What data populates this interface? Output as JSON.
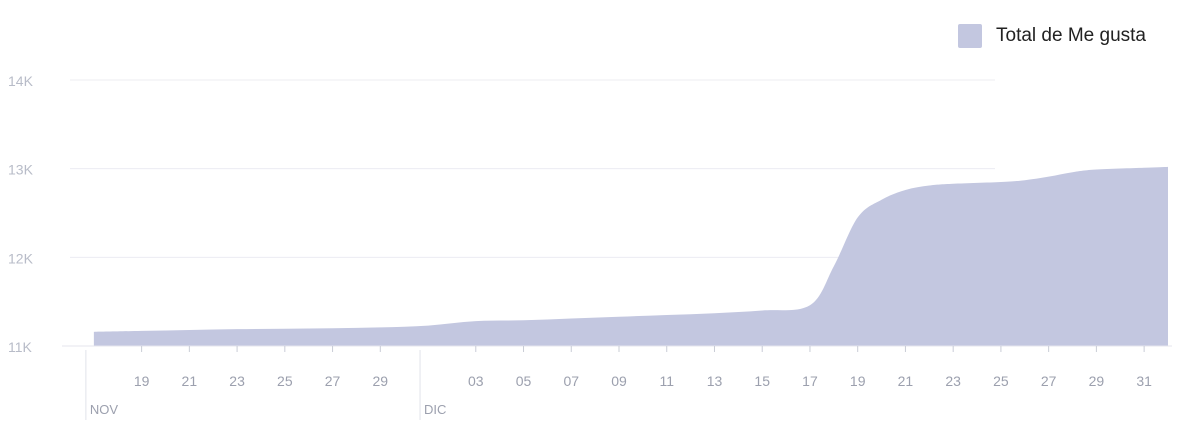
{
  "chart_data": {
    "type": "area",
    "series": [
      {
        "name": "Total de Me gusta",
        "color": "#c3c7e0",
        "points": [
          [
            "2017-11-17",
            11160
          ],
          [
            "2017-11-19",
            11170
          ],
          [
            "2017-11-21",
            11180
          ],
          [
            "2017-11-23",
            11190
          ],
          [
            "2017-11-25",
            11195
          ],
          [
            "2017-11-27",
            11200
          ],
          [
            "2017-11-29",
            11210
          ],
          [
            "2017-12-01",
            11230
          ],
          [
            "2017-12-03",
            11280
          ],
          [
            "2017-12-05",
            11290
          ],
          [
            "2017-12-07",
            11310
          ],
          [
            "2017-12-09",
            11330
          ],
          [
            "2017-12-11",
            11350
          ],
          [
            "2017-12-13",
            11370
          ],
          [
            "2017-12-15",
            11400
          ],
          [
            "2017-12-17",
            11460
          ],
          [
            "2017-12-18",
            11900
          ],
          [
            "2017-12-19",
            12450
          ],
          [
            "2017-12-20",
            12650
          ],
          [
            "2017-12-21",
            12760
          ],
          [
            "2017-12-22",
            12810
          ],
          [
            "2017-12-23",
            12830
          ],
          [
            "2017-12-25",
            12850
          ],
          [
            "2017-12-26",
            12870
          ],
          [
            "2017-12-27",
            12910
          ],
          [
            "2017-12-28",
            12960
          ],
          [
            "2017-12-29",
            12990
          ],
          [
            "2017-12-31",
            13010
          ],
          [
            "2018-01-01",
            13020
          ]
        ]
      }
    ],
    "ylim": [
      11000,
      14000
    ],
    "y_ticks": [
      {
        "value": 11000,
        "label": "11K"
      },
      {
        "value": 12000,
        "label": "12K"
      },
      {
        "value": 13000,
        "label": "13K"
      },
      {
        "value": 14000,
        "label": "14K"
      }
    ],
    "x_ticks": [
      {
        "date": "2017-11-19",
        "label": "19"
      },
      {
        "date": "2017-11-21",
        "label": "21"
      },
      {
        "date": "2017-11-23",
        "label": "23"
      },
      {
        "date": "2017-11-25",
        "label": "25"
      },
      {
        "date": "2017-11-27",
        "label": "27"
      },
      {
        "date": "2017-11-29",
        "label": "29"
      },
      {
        "date": "2017-12-03",
        "label": "03"
      },
      {
        "date": "2017-12-05",
        "label": "05"
      },
      {
        "date": "2017-12-07",
        "label": "07"
      },
      {
        "date": "2017-12-09",
        "label": "09"
      },
      {
        "date": "2017-12-11",
        "label": "11"
      },
      {
        "date": "2017-12-13",
        "label": "13"
      },
      {
        "date": "2017-12-15",
        "label": "15"
      },
      {
        "date": "2017-12-17",
        "label": "17"
      },
      {
        "date": "2017-12-19",
        "label": "19"
      },
      {
        "date": "2017-12-21",
        "label": "21"
      },
      {
        "date": "2017-12-23",
        "label": "23"
      },
      {
        "date": "2017-12-25",
        "label": "25"
      },
      {
        "date": "2017-12-27",
        "label": "27"
      },
      {
        "date": "2017-12-29",
        "label": "29"
      },
      {
        "date": "2017-12-31",
        "label": "31"
      }
    ],
    "month_labels": [
      {
        "date": "2017-11-17",
        "label": "NOV"
      },
      {
        "date": "2017-12-01",
        "label": "DIC"
      }
    ],
    "grid": true,
    "legend": "top-right"
  }
}
